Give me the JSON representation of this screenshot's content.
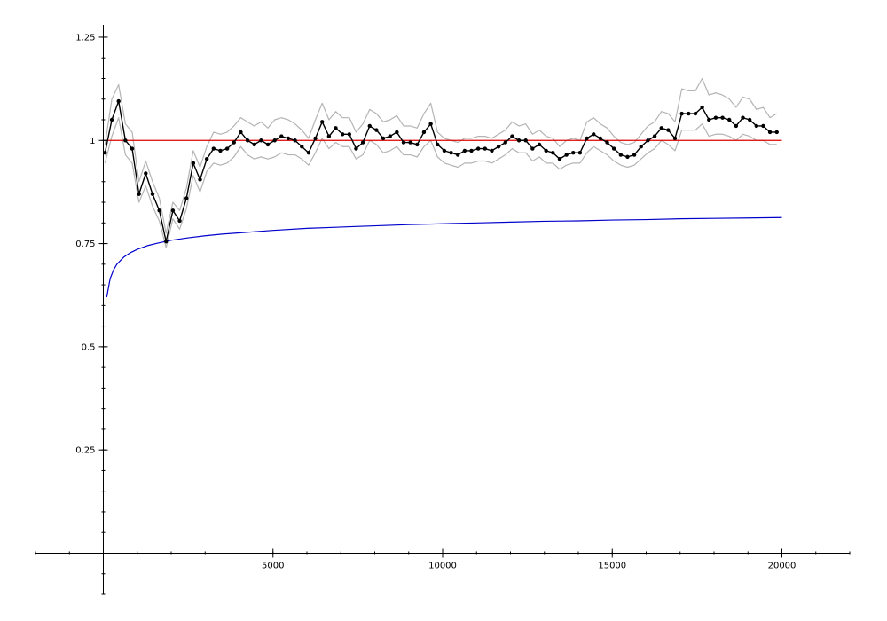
{
  "chart_data": {
    "type": "line",
    "title": "",
    "xlabel": "",
    "ylabel": "",
    "xlim": [
      -2000,
      22000
    ],
    "ylim": [
      -0.1,
      1.28
    ],
    "x_ticks": [
      {
        "value": 5000,
        "label": "5000"
      },
      {
        "value": 10000,
        "label": "10000"
      },
      {
        "value": 15000,
        "label": "15000"
      },
      {
        "value": 20000,
        "label": "20000"
      }
    ],
    "y_ticks": [
      {
        "value": 0.25,
        "label": "0.25"
      },
      {
        "value": 0.5,
        "label": "0.5"
      },
      {
        "value": 0.75,
        "label": "0.75"
      },
      {
        "value": 1,
        "label": "1"
      },
      {
        "value": 1.25,
        "label": "1.25"
      }
    ],
    "grid": false,
    "colors": {
      "main": "#000000",
      "band": "#b4b4b4",
      "reference": "#dd0000",
      "curve": "#0000cc"
    },
    "x": [
      50,
      250,
      450,
      650,
      850,
      1050,
      1250,
      1450,
      1650,
      1850,
      2050,
      2250,
      2450,
      2650,
      2850,
      3050,
      3250,
      3450,
      3650,
      3850,
      4050,
      4250,
      4450,
      4650,
      4850,
      5050,
      5250,
      5450,
      5650,
      5850,
      6050,
      6250,
      6450,
      6650,
      6850,
      7050,
      7250,
      7450,
      7650,
      7850,
      8050,
      8250,
      8450,
      8650,
      8850,
      9050,
      9250,
      9450,
      9650,
      9850,
      10050,
      10250,
      10450,
      10650,
      10850,
      11050,
      11250,
      11450,
      11650,
      11850,
      12050,
      12250,
      12450,
      12650,
      12850,
      13050,
      13250,
      13450,
      13650,
      13850,
      14050,
      14250,
      14450,
      14650,
      14850,
      15050,
      15250,
      15450,
      15650,
      15850,
      16050,
      16250,
      16450,
      16650,
      16850,
      17050,
      17250,
      17450,
      17650,
      17850,
      18050,
      18250,
      18450,
      18650,
      18850,
      19050,
      19250,
      19450,
      19650,
      19850
    ],
    "series": [
      {
        "role": "main",
        "markers": true,
        "values": [
          0.97,
          1.05,
          1.095,
          1.0,
          0.98,
          0.87,
          0.92,
          0.87,
          0.83,
          0.755,
          0.83,
          0.805,
          0.86,
          0.945,
          0.905,
          0.955,
          0.98,
          0.975,
          0.98,
          0.995,
          1.02,
          1.0,
          0.99,
          1.0,
          0.99,
          1.0,
          1.01,
          1.005,
          1.0,
          0.985,
          0.97,
          1.005,
          1.045,
          1.01,
          1.03,
          1.015,
          1.015,
          0.98,
          0.995,
          1.035,
          1.025,
          1.005,
          1.01,
          1.02,
          0.995,
          0.995,
          0.99,
          1.02,
          1.04,
          0.99,
          0.975,
          0.97,
          0.965,
          0.975,
          0.975,
          0.98,
          0.98,
          0.975,
          0.985,
          0.995,
          1.01,
          1.0,
          1.0,
          0.98,
          0.99,
          0.975,
          0.97,
          0.955,
          0.965,
          0.97,
          0.97,
          1.005,
          1.015,
          1.005,
          0.995,
          0.98,
          0.965,
          0.96,
          0.965,
          0.985,
          1.0,
          1.01,
          1.03,
          1.025,
          1.005,
          1.065,
          1.065,
          1.065,
          1.08,
          1.05,
          1.055,
          1.055,
          1.05,
          1.035,
          1.055,
          1.05,
          1.035,
          1.035,
          1.02,
          1.02
        ]
      },
      {
        "role": "band",
        "markers": false,
        "values": [
          0.99,
          1.1,
          1.135,
          1.04,
          1.02,
          0.9,
          0.95,
          0.9,
          0.86,
          0.775,
          0.85,
          0.83,
          0.885,
          0.975,
          0.935,
          0.985,
          1.02,
          1.015,
          1.02,
          1.035,
          1.055,
          1.045,
          1.035,
          1.045,
          1.03,
          1.05,
          1.055,
          1.05,
          1.04,
          1.025,
          1.005,
          1.05,
          1.09,
          1.05,
          1.07,
          1.055,
          1.055,
          1.02,
          1.04,
          1.075,
          1.065,
          1.045,
          1.05,
          1.06,
          1.035,
          1.035,
          1.03,
          1.065,
          1.09,
          1.02,
          1.005,
          1.0,
          0.995,
          1.005,
          1.005,
          1.01,
          1.01,
          1.005,
          1.015,
          1.025,
          1.045,
          1.035,
          1.04,
          1.015,
          1.025,
          1.01,
          1.005,
          0.985,
          1.0,
          1.005,
          1.0,
          1.045,
          1.055,
          1.04,
          1.03,
          1.01,
          0.995,
          0.99,
          0.995,
          1.015,
          1.035,
          1.045,
          1.07,
          1.065,
          1.045,
          1.125,
          1.12,
          1.12,
          1.15,
          1.11,
          1.115,
          1.11,
          1.1,
          1.08,
          1.105,
          1.1,
          1.075,
          1.08,
          1.055,
          1.065
        ]
      },
      {
        "role": "band",
        "markers": false,
        "values": [
          0.945,
          1.01,
          1.055,
          0.965,
          0.945,
          0.85,
          0.89,
          0.84,
          0.805,
          0.74,
          0.81,
          0.785,
          0.835,
          0.915,
          0.875,
          0.925,
          0.945,
          0.94,
          0.945,
          0.96,
          0.985,
          0.965,
          0.955,
          0.96,
          0.955,
          0.96,
          0.97,
          0.965,
          0.965,
          0.955,
          0.94,
          0.97,
          1.005,
          0.98,
          0.995,
          0.985,
          0.985,
          0.955,
          0.965,
          1.0,
          0.99,
          0.97,
          0.975,
          0.985,
          0.965,
          0.965,
          0.96,
          0.985,
          1.0,
          0.96,
          0.945,
          0.94,
          0.935,
          0.945,
          0.945,
          0.95,
          0.95,
          0.945,
          0.955,
          0.965,
          0.98,
          0.97,
          0.97,
          0.95,
          0.96,
          0.945,
          0.945,
          0.93,
          0.94,
          0.945,
          0.945,
          0.97,
          0.985,
          0.975,
          0.965,
          0.95,
          0.94,
          0.935,
          0.94,
          0.955,
          0.97,
          0.98,
          1.0,
          0.99,
          0.975,
          1.025,
          1.025,
          1.025,
          1.04,
          1.01,
          1.015,
          1.015,
          1.01,
          1.0,
          1.015,
          1.01,
          1.0,
          1.0,
          0.99,
          0.99
        ]
      },
      {
        "role": "reference",
        "markers": false,
        "x": [
          50,
          20000
        ],
        "values": [
          1.0,
          1.0
        ]
      },
      {
        "role": "curve",
        "markers": false,
        "x": [
          100,
          200,
          300,
          400,
          600,
          800,
          1000,
          1300,
          1600,
          2000,
          2500,
          3000,
          3500,
          4000,
          5000,
          6000,
          7000,
          8000,
          9000,
          10000,
          11000,
          12000,
          13000,
          14000,
          15000,
          16000,
          17000,
          18000,
          19000,
          20000
        ],
        "values": [
          0.62,
          0.665,
          0.686,
          0.7,
          0.717,
          0.728,
          0.736,
          0.745,
          0.751,
          0.758,
          0.764,
          0.769,
          0.773,
          0.776,
          0.782,
          0.787,
          0.79,
          0.793,
          0.796,
          0.798,
          0.8,
          0.802,
          0.804,
          0.805,
          0.807,
          0.808,
          0.81,
          0.811,
          0.812,
          0.813
        ]
      }
    ]
  }
}
